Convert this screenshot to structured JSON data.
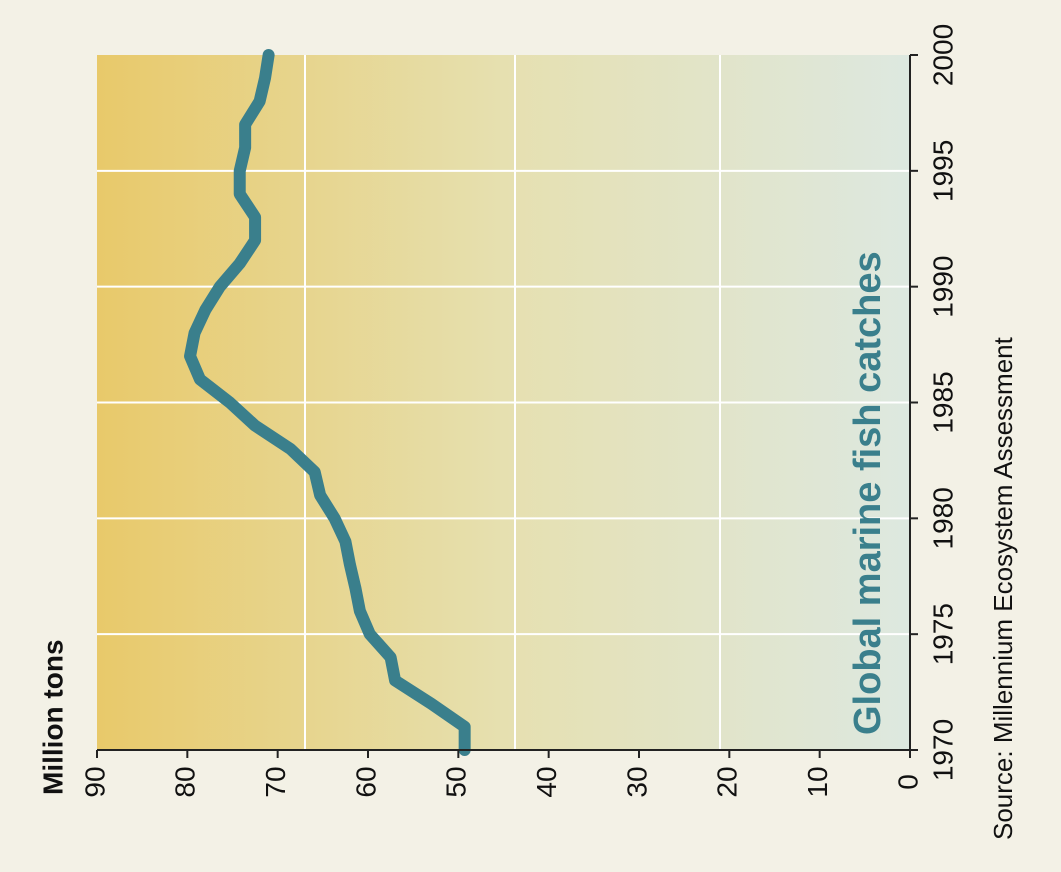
{
  "chart_data": {
    "type": "line",
    "title": "Global marine fish catches",
    "y_label": "Million tons",
    "source": "Source: Millennium Ecosystem Assessment",
    "x": [
      1970,
      1971,
      1972,
      1973,
      1974,
      1975,
      1976,
      1977,
      1978,
      1979,
      1980,
      1981,
      1982,
      1983,
      1984,
      1985,
      1986,
      1987,
      1988,
      1989,
      1990,
      1991,
      1992,
      1993,
      1994,
      1995,
      1996,
      1997,
      1998,
      1999,
      2000
    ],
    "series": [
      {
        "name": "Global marine fish catches",
        "color": "#3a7f8c",
        "values": [
          49.3,
          49.3,
          53,
          57,
          57.5,
          59.8,
          60.9,
          61.4,
          62,
          62.5,
          63.7,
          65.3,
          65.9,
          68.6,
          72.5,
          75.3,
          78.6,
          79.7,
          79.2,
          78,
          76.4,
          74.2,
          72.5,
          72.5,
          74.2,
          74.2,
          73.6,
          73.6,
          72,
          71.4,
          71
        ]
      }
    ],
    "xlim": [
      1970,
      2000
    ],
    "xticks": [
      1970,
      1975,
      1980,
      1985,
      1990,
      1995,
      2000
    ],
    "ylim": [
      0,
      90
    ],
    "yticks": [
      0,
      10,
      20,
      30,
      40,
      50,
      60,
      70,
      80,
      90
    ],
    "grid": true
  }
}
